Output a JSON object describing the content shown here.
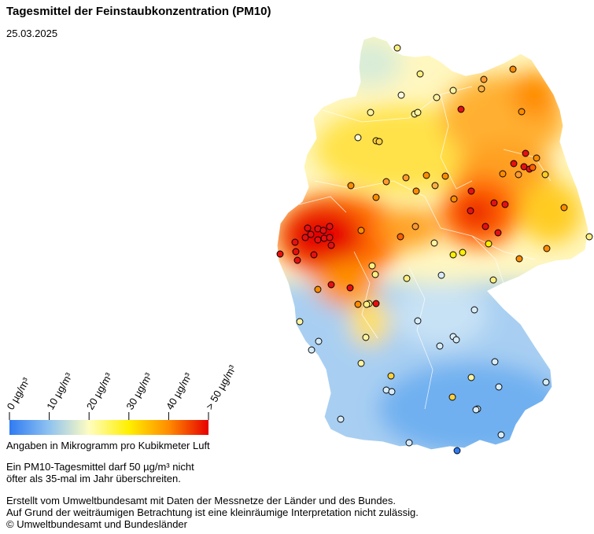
{
  "title": "Tagesmittel der Feinstaubkonzentration (PM10)",
  "date": "25.03.2025",
  "legend": {
    "ticks": [
      "0 µg/m³",
      "10 µg/m³",
      "20 µg/m³",
      "30 µg/m³",
      "40 µg/m³",
      "> 50 µg/m³"
    ],
    "units_note": "Angaben in Mikrogramm pro Kubikmeter Luft",
    "colors": [
      "#2f7bf2",
      "#8fc3f0",
      "#fffdc0",
      "#ffef00",
      "#ff8c00",
      "#e60000"
    ]
  },
  "limit_note": [
    "Ein PM10-Tagesmittel darf 50 µg/m³ nicht",
    "öfter als 35-mal im Jahr überschreiten."
  ],
  "footer": [
    "Erstellt vom Umweltbundesamt mit Daten der Messnetze der Länder und des Bundes.",
    "Auf Grund der weiträumigen Betrachtung ist eine kleinräumige Interpretation nicht zulässig.",
    "© Umweltbundesamt und Bundesländer"
  ]
}
